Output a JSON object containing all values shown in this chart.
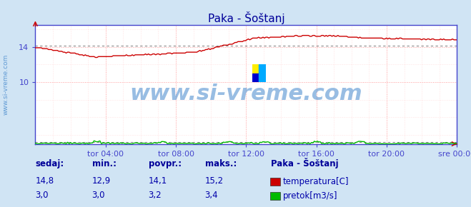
{
  "title": "Paka - Šoštanj",
  "bg_color": "#d0e4f4",
  "plot_bg_color": "#ffffff",
  "border_color": "#4444cc",
  "grid_color_h": "#ffaaaa",
  "grid_color_v": "#ffcccc",
  "x_ticks_labels": [
    "tor 04:00",
    "tor 08:00",
    "tor 12:00",
    "tor 16:00",
    "tor 20:00",
    "sre 00:00"
  ],
  "x_ticks_pos": [
    0.16667,
    0.33333,
    0.5,
    0.66667,
    0.83333,
    1.0
  ],
  "y_ticks": [
    10,
    14
  ],
  "ylim": [
    3.0,
    16.5
  ],
  "xlim": [
    0.0,
    1.0
  ],
  "temp_color": "#cc0000",
  "flow_color": "#00bb00",
  "avg_line_color": "#999999",
  "watermark_color": "#4488cc",
  "watermark_text": "www.si-vreme.com",
  "watermark_fontsize": 22,
  "title_color": "#000099",
  "title_fontsize": 11,
  "axis_label_color": "#0000aa",
  "axis_label_fontsize": 8,
  "legend_title": "Paka - Šoštanj",
  "legend_items": [
    "temperatura[C]",
    "pretok[m3/s]"
  ],
  "legend_colors": [
    "#cc0000",
    "#00bb00"
  ],
  "table_headers": [
    "sedaj:",
    "min.:",
    "povpr.:",
    "maks.:"
  ],
  "table_temp": [
    "14,8",
    "12,9",
    "14,1",
    "15,2"
  ],
  "table_flow": [
    "3,0",
    "3,0",
    "3,2",
    "3,4"
  ],
  "temp_avg": 14.1,
  "flow_avg": 3.2,
  "n_points": 288,
  "logo_colors": [
    "#ffee00",
    "#00aaff",
    "#0000cc",
    "#00aaff"
  ]
}
